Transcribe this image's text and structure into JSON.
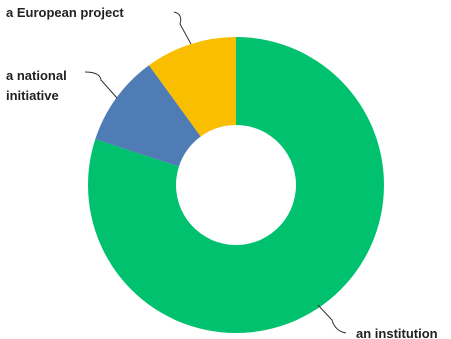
{
  "chart_data": {
    "type": "pie",
    "style": "donut",
    "title": "",
    "start_angle_deg": 0,
    "direction": "clockwise",
    "legend": "none",
    "slices": [
      {
        "label": "an institution",
        "value": 80,
        "color": "#00c16e"
      },
      {
        "label": "a national initiative",
        "label_lines": [
          "a national",
          "initiative"
        ],
        "value": 10,
        "color": "#507cb6"
      },
      {
        "label": "a European project",
        "value": 10,
        "color": "#f9be00"
      }
    ]
  }
}
